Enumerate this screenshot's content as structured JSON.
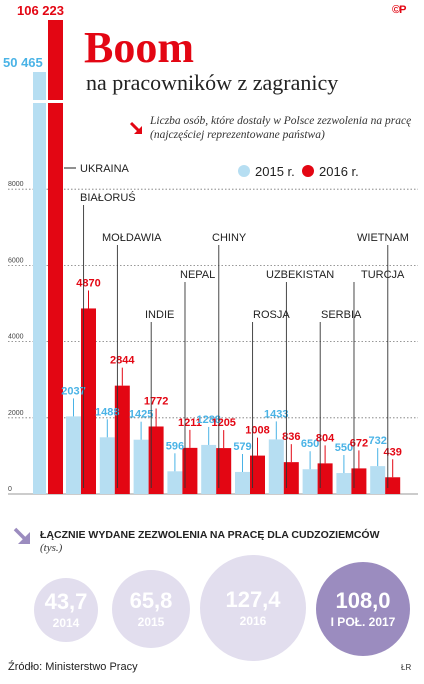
{
  "header": {
    "title": "Boom",
    "subtitle": "na pracowników z zagranicy",
    "description": "Liczba osób, które dostały w Polsce zezwolenia na pracę (najczęściej reprezentowane państwa)",
    "logo_text": "©P"
  },
  "colors": {
    "series_2015": "#b6def2",
    "series_2016": "#e30613",
    "bubble": "#e2deee",
    "bubble_dark": "#9b8cbf"
  },
  "chart_data": {
    "type": "bar",
    "categories": [
      "UKRAINA",
      "BIAŁORUŚ",
      "MOŁDAWIA",
      "INDIE",
      "NEPAL",
      "CHINY",
      "ROSJA",
      "UZBEKISTAN",
      "SERBIA",
      "TURCJA",
      "WIETNAM"
    ],
    "series": [
      {
        "name": "2015 r.",
        "values": [
          50465,
          2037,
          1488,
          1425,
          596,
          1288,
          579,
          1433,
          650,
          550,
          732
        ],
        "labels": [
          "50 465",
          "2037",
          "1488",
          "1425",
          "596",
          "1288",
          "579",
          "1433",
          "650",
          "550",
          "732"
        ]
      },
      {
        "name": "2016 r.",
        "values": [
          106223,
          4870,
          2844,
          1772,
          1211,
          1205,
          1008,
          836,
          804,
          672,
          439
        ],
        "labels": [
          "106 223",
          "4870",
          "2844",
          "1772",
          "1211",
          "1205",
          "1008",
          "836",
          "804",
          "672",
          "439"
        ]
      }
    ],
    "yticks": [
      "0",
      "2000",
      "4000",
      "6000",
      "8000"
    ],
    "ylim": [
      0,
      8000
    ],
    "axis_break": true,
    "legend_position": "top-right",
    "grid": true
  },
  "totals": {
    "heading": "ŁĄCZNIE WYDANE ZEZWOLENIA NA PRACĘ DLA CUDZOZIEMCÓW",
    "unit": "(tys.)",
    "items": [
      {
        "value": "43,7",
        "label": "2014"
      },
      {
        "value": "65,8",
        "label": "2015"
      },
      {
        "value": "127,4",
        "label": "2016"
      },
      {
        "value": "108,0",
        "label": "I POŁ. 2017"
      }
    ]
  },
  "footer": {
    "source": "Źródło: Ministerstwo Pracy",
    "initials": "ŁR"
  }
}
